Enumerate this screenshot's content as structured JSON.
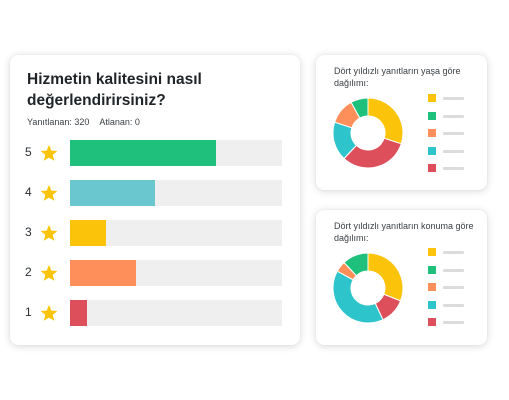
{
  "main": {
    "title": "Hizmetin kalitesini nasıl değerlendirirsiniz?",
    "answered": "Yanıtlanan: 320",
    "skipped": "Atlanan: 0",
    "rows": [
      {
        "label": "5",
        "fraction": 0.69,
        "color": "#1fc07b"
      },
      {
        "label": "4",
        "fraction": 0.4,
        "color": "#6ac7cf"
      },
      {
        "label": "3",
        "fraction": 0.17,
        "color": "#fcc30b"
      },
      {
        "label": "2",
        "fraction": 0.31,
        "color": "#ff8f5a"
      },
      {
        "label": "1",
        "fraction": 0.08,
        "color": "#dc4f5b"
      }
    ],
    "star_color": "#fcc30b",
    "star_icon": "star-icon"
  },
  "age_card": {
    "title": "Dört yıldızlı yanıtların yaşa göre dağılımı:",
    "slices": [
      {
        "value": 30,
        "color": "#fcc30b"
      },
      {
        "value": 32,
        "color": "#dc4f5b"
      },
      {
        "value": 18,
        "color": "#2ec4cc"
      },
      {
        "value": 12,
        "color": "#ff8f5a"
      },
      {
        "value": 8,
        "color": "#1fc07b"
      }
    ],
    "legend_colors": [
      "#fcc30b",
      "#1fc07b",
      "#ff8f5a",
      "#2ec4cc",
      "#dc4f5b"
    ]
  },
  "loc_card": {
    "title": "Dört yıldızlı yanıtların konuma göre dağılımı:",
    "slices": [
      {
        "value": 31,
        "color": "#fcc30b"
      },
      {
        "value": 12,
        "color": "#dc4f5b"
      },
      {
        "value": 40,
        "color": "#2ec4cc"
      },
      {
        "value": 5,
        "color": "#ff8f5a"
      },
      {
        "value": 12,
        "color": "#1fc07b"
      }
    ],
    "legend_colors": [
      "#fcc30b",
      "#1fc07b",
      "#ff8f5a",
      "#2ec4cc",
      "#dc4f5b"
    ]
  }
}
